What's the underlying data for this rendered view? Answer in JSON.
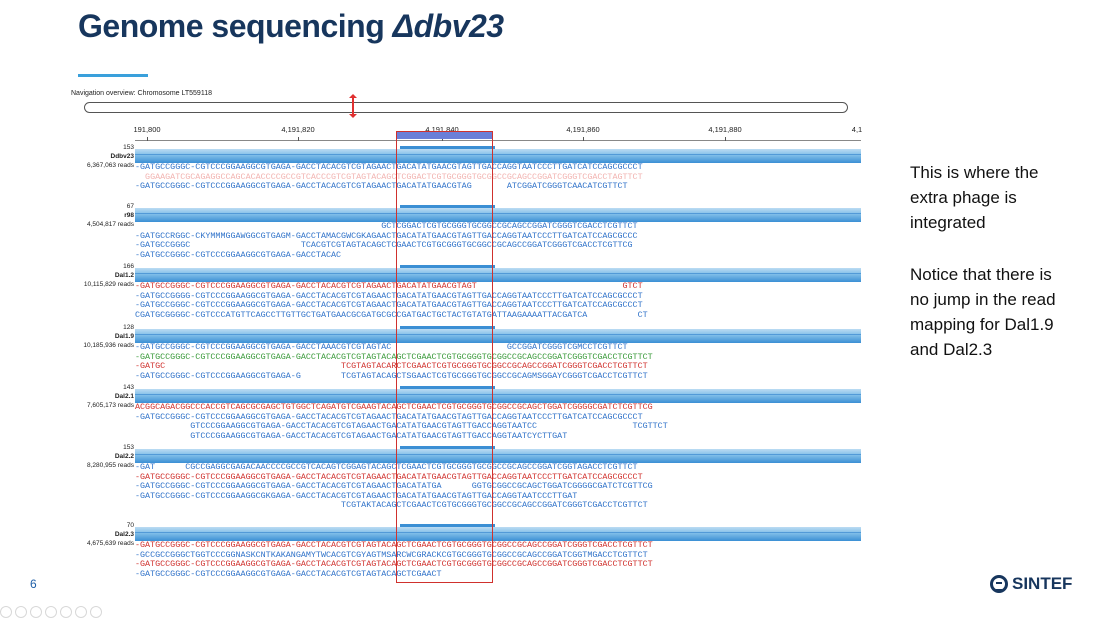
{
  "slide": {
    "title_prefix": "Genome sequencing ",
    "title_gene": "Δdbv23",
    "page_number": "6",
    "logo_text": "SINTEF"
  },
  "navigation": {
    "label": "Navigation overview: Chromosome LT559118"
  },
  "ruler": {
    "ticks": [
      "191,800",
      "4,191,820",
      "4,191,840",
      "4,191,860",
      "4,191,880",
      "4,1"
    ]
  },
  "tracks": [
    {
      "coverage_max": "153",
      "name": "Ddbv23",
      "reads": "6,367,063 reads",
      "lines": [
        {
          "color": "blue",
          "text": "-GATGCCGGGC-CGTCCCGGAAGGCGTGAGA-GACCTACACGTCGTAGAACTGACATATGAACGTAGTTGACCAGGTAATCCCTTGATCATCCAGCGCCCT"
        },
        {
          "color": "pink",
          "text": "  GGAAGATCGCAGAGGCCAGCACACCCCGCCGTCACCCGTCGTAGTACAGCTCGGACTCGTGCGGGTGCGGCCGCAGCCGGATCGGGTCGACCTAGTTCT"
        },
        {
          "color": "blue",
          "text": "-GATGCCGGGC-CGTCCCGGAAGGCGTGAGA-GACCTACACGTCGTAGAACTGACATATGAACGTAG       ATCGGATCGGGTCAACATCGTTCT"
        }
      ]
    },
    {
      "coverage_max": "67",
      "name": "r98",
      "reads": "4,504,817 reads",
      "lines": [
        {
          "color": "blue",
          "text": "                                                 GCTCGGACTCGTGCGGGTGCGGCCGCAGCCGGATCGGGTCGACCTCGTTCT"
        },
        {
          "color": "blue",
          "text": "-GATGCCRGGC-CKYMMMGGAWGGCGTGAGM-GACCTAMACGWCGKAGAACTGACATATGAACGTAGTTGACCAGGTAATCCCTTGATCATCCAGCGCCC"
        },
        {
          "color": "blue",
          "text": "-GATGCCGGGC                      TCACGTCGTAGTACAGCTCGAACTCGTGCGGGTGCGGCCGCAGCCGGATCGGGTCGACCTCGTTCG"
        },
        {
          "color": "blue",
          "text": "-GATGCCGGGC-CGTCCCGGAAGGCGTGAGA-GACCTACAC"
        }
      ]
    },
    {
      "coverage_max": "166",
      "name": "Dal1.2",
      "reads": "10,115,829 reads",
      "lines": [
        {
          "color": "red",
          "text": "-GATGCCGGGC-CGTCCCGGAAGGCGTGAGA-GACCTACACGTCGTAGAACTGACATATGAACGTAGT                             GTCT"
        },
        {
          "color": "blue",
          "text": "-GATGCCGGGG-CGTCCCGGAAGGCGTGAGA-GACCTACACGTCGTAGAACTGACATATGAACGTAGTTGACCAGGTAATCCCTTGATCATCCAGCGCCCT"
        },
        {
          "color": "blue",
          "text": "-GATGCCGGGC-CGTCCCGGAAGGCGTGAGA-GACCTACACGTCGTAGAACTGACATATGAACGTAGTTGACCAGGTAATCCCTTGATCATCCAGCGCCCT"
        },
        {
          "color": "blue",
          "text": "CGATGCGGGGC-CGTCCCATGTTCAGCCTTGTTGCTGATGAACGCGATGCGCCGATGACTGCTACTGTATGATTAAGAAAATTACGATCA          CT"
        }
      ]
    },
    {
      "coverage_max": "128",
      "name": "Dal1.9",
      "reads": "10,185,936 reads",
      "lines": [
        {
          "color": "blue",
          "text": "-GATGCCGGGC-CGTCCCGGAAGGCGTGAGA-GACCTAAACGTCGTAGTAC                       GCCGGATCGGGTCGMCCTCGTTCT"
        },
        {
          "color": "green",
          "text": "-GATGCCGGGC-CGTCCCGGAAGGCGTGAGA-GACCTACACGTCGTAGTACAGCTCGAACTCGTGCGGGTGCGGCCGCAGCCGGATCGGGTCGACCTCGTTCT"
        },
        {
          "color": "red",
          "text": "-GATGC                                   TCGTAGTACARCTCGAACTCGTGCGGGTGCGGCCGCAGCCGGATCGGGTCGACCTCGTTCT"
        },
        {
          "color": "blue",
          "text": "-GATGCCGGGC-CGTCCCGGAAGGCGTGAGA-G        TCGTAGTACAGCTSGAACTCGTGCGGGTGCGGCCGCAGMSGGAYCGGGTCGACCTCGTTCT"
        }
      ]
    },
    {
      "coverage_max": "143",
      "name": "Dal2.1",
      "reads": "7,605,173 reads",
      "lines": [
        {
          "color": "red",
          "text": "ACGGCAGACGGCCCACCGTCAGCGCGAGCTGTGGCTCAGATGTCGAAGTACAGCTCGAACTCGTGCGGGTGCGGCCGCAGCTGGATCGGGGCGATCTCGTTCG"
        },
        {
          "color": "blue",
          "text": "-GATGCCGGGC-CGTCCCGGAAGGCGTGAGA-GACCTACACGTCGTAGAACTGACATATGAACGTAGTTGACCAGGTAATCCCTTGATCATCCAGCGCCCT"
        },
        {
          "color": "blue",
          "text": "           GTCCCGGAAGGCGTGAGA-GACCTACACGTCGTAGAACTGACATATGAACGTAGTTGACCAGGTAATCC                   TCGTTCT"
        },
        {
          "color": "blue",
          "text": "           GTCCCGGAAGGCGTGAGA-GACCTACACGTCGTAGAACTGACATATGAACGTAGTTGACCAGGTAATCYCTTGAT"
        }
      ]
    },
    {
      "coverage_max": "153",
      "name": "Dal2.2",
      "reads": "8,280,955 reads",
      "lines": [
        {
          "color": "blue",
          "text": "-GAT      CGCCGAGGCGAGACAACCCCGCCGTCACAGTCGGAGTACAGCTCGAACTCGTGCGGGTGCGGCCGCAGCCGGATCGGTAGACCTCGTTCT"
        },
        {
          "color": "red",
          "text": "-GATGCCGGGC-CGTCCCGGAAGGCGTGAGA-GACCTACACGTCGTAGAACTGACATATGAACGTAGTTGACCAGGTAATCCCTTGATCATCCAGCGCCCT"
        },
        {
          "color": "blue",
          "text": "-GATGCCGGGC-CGTCCCGGAAGGCGTGAGA-GACCTACACGTCGTAGAACTGACATATGA      GGTGCGGCCGCAGCTGGATCGGGGCGATCTCGTTCG"
        },
        {
          "color": "blue",
          "text": "-GATGCCGGGC-CGTCCCGGAAGGCGKGAGA-GACCTACACGTCGTAGAACTGACATATGAACGTAGTTGACCAGGTAATCCCTTGAT"
        },
        {
          "color": "blue",
          "text": "                                         TCGTAKTACAGCTCGAACTCGTGCGGGTGCGGCCGCAGCCGGATCGGGTCGACCTCGTTCT"
        }
      ]
    },
    {
      "coverage_max": "70",
      "name": "Dal2.3",
      "reads": "4,675,639 reads",
      "lines": [
        {
          "color": "red",
          "text": "-GATGCCGGGC-CGTCCCGGAAGGCGTGAGA-GACCTACACGTCGTAGTACAGCTCGAACTCGTGCGGGTGCGGCCGCAGCCGGATCGGGTCGACCTCGTTCT"
        },
        {
          "color": "blue",
          "text": "-GCCGCCGGGCTGGTCCCGGNASKCNTKAKANGAMYTWCACGTCGYAGTMSARCWCGRACKCGTGCGGGTGCGGCCGCAGCCGGATCGGTMGACCTCGTTCT"
        },
        {
          "color": "red",
          "text": "-GATGCCGGGC-CGTCCCGGAAGGCGTGAGA-GACCTACACGTCGTAGTACAGCTCGAACTCGTGCGGGTGCGGCCGCAGCCGGATCGGGTCGACCTCGTTCT"
        },
        {
          "color": "blue",
          "text": "-GATGCCGGGC-CGTCCCGGAAGGCGTGAGA-GACCTACACGTCGTAGTACAGCTCGAACT"
        }
      ]
    }
  ],
  "notes": {
    "note1_lines": [
      "This is where the",
      "extra phage is",
      "integrated"
    ],
    "note2_lines": [
      "Notice that there is",
      "no jump in the read",
      "mapping for Dal1.9",
      "and Dal2.3"
    ]
  },
  "colors": {
    "title": "#17365d",
    "accent": "#3aa0db",
    "highlight_box": "#d0312d",
    "read_blue": "#2f72c9",
    "read_red": "#d0312d"
  }
}
